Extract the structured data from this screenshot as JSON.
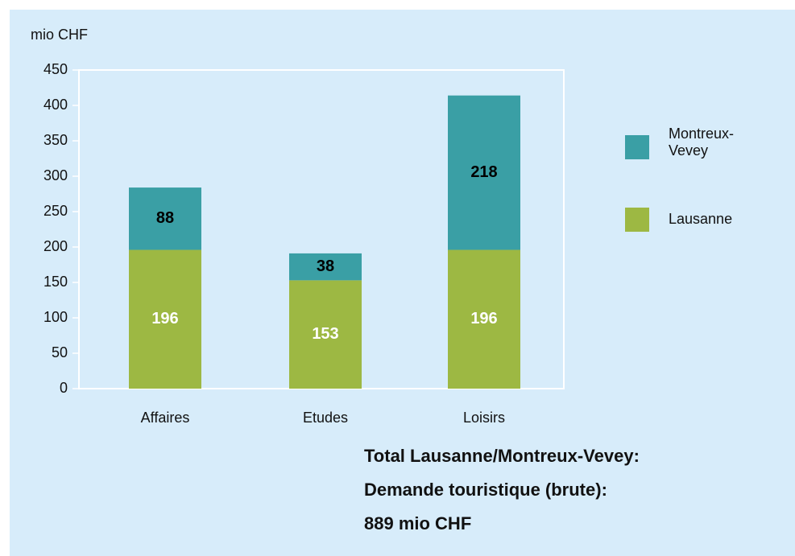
{
  "chart_data": {
    "type": "stacked_bar",
    "y_axis_label": "mio CHF",
    "categories": [
      "Affaires",
      "Etudes",
      "Loisirs"
    ],
    "series": [
      {
        "name": "Lausanne",
        "color": "#9db843",
        "label_color": "#ffffff",
        "values": [
          196,
          153,
          196
        ]
      },
      {
        "name": "Montreux-Vevey",
        "color": "#3a9fa5",
        "label_color": "#000000",
        "values": [
          88,
          38,
          218
        ]
      }
    ],
    "ylim": [
      0,
      450
    ],
    "yticks": [
      0,
      50,
      100,
      150,
      200,
      250,
      300,
      350,
      400,
      450
    ],
    "annotations": [
      "Total Lausanne/Montreux-Vevey:",
      "Demande touristique (brute):",
      "889 mio CHF"
    ]
  }
}
